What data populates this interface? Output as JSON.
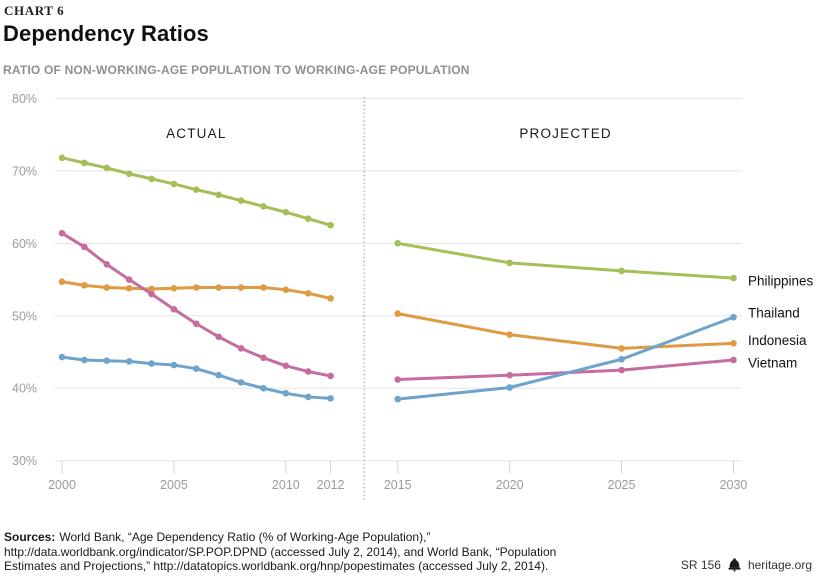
{
  "header": {
    "kicker": "CHART 6",
    "title": "Dependency Ratios",
    "subtitle": "RATIO OF NON-WORKING-AGE POPULATION TO WORKING-AGE POPULATION"
  },
  "chart_data": {
    "type": "line",
    "title": "Dependency Ratios",
    "subtitle": "RATIO OF NON-WORKING-AGE POPULATION TO WORKING-AGE POPULATION",
    "ylim": [
      30,
      80
    ],
    "grid": true,
    "legend_position": "right-of-lines",
    "y_ticks": [
      {
        "value": 80,
        "label": "80%"
      },
      {
        "value": 70,
        "label": "70%"
      },
      {
        "value": 60,
        "label": "60%"
      },
      {
        "value": 50,
        "label": "50%"
      },
      {
        "value": 40,
        "label": "40%"
      },
      {
        "value": 30,
        "label": "30%"
      }
    ],
    "x_ticks": [
      {
        "year": 2000,
        "label": "2000"
      },
      {
        "year": 2005,
        "label": "2005"
      },
      {
        "year": 2010,
        "label": "2010"
      },
      {
        "year": 2012,
        "label": "2012"
      },
      {
        "year": 2015,
        "label": "2015"
      },
      {
        "year": 2020,
        "label": "2020"
      },
      {
        "year": 2025,
        "label": "2025"
      },
      {
        "year": 2030,
        "label": "2030"
      }
    ],
    "sections": [
      {
        "label": "ACTUAL",
        "start_year": 2000,
        "end_year": 2012
      },
      {
        "label": "PROJECTED",
        "start_year": 2015,
        "end_year": 2030
      }
    ],
    "divider_year": 2013.5,
    "actual_years": [
      2000,
      2001,
      2002,
      2003,
      2004,
      2005,
      2006,
      2007,
      2008,
      2009,
      2010,
      2011,
      2012
    ],
    "projected_years": [
      2015,
      2020,
      2025,
      2030
    ],
    "series": [
      {
        "name": "Philippines",
        "color": "#a4bf57",
        "actual": [
          71.8,
          71.1,
          70.4,
          69.6,
          68.9,
          68.2,
          67.4,
          66.7,
          65.9,
          65.1,
          64.3,
          63.4,
          62.5
        ],
        "projected": [
          60.0,
          57.3,
          56.2,
          55.2
        ]
      },
      {
        "name": "Indonesia",
        "color": "#e09a44",
        "actual": [
          54.7,
          54.2,
          53.9,
          53.8,
          53.7,
          53.8,
          53.9,
          53.9,
          53.9,
          53.9,
          53.6,
          53.1,
          52.4
        ],
        "projected": [
          50.3,
          47.4,
          45.5,
          46.2
        ]
      },
      {
        "name": "Vietnam",
        "color": "#c56d9e",
        "actual": [
          61.4,
          59.5,
          57.1,
          55.0,
          53.0,
          50.9,
          48.9,
          47.1,
          45.5,
          44.2,
          43.1,
          42.3,
          41.7
        ],
        "projected": [
          41.2,
          41.8,
          42.5,
          43.9
        ]
      },
      {
        "name": "Thailand",
        "color": "#6ea3cc",
        "actual": [
          44.3,
          43.9,
          43.8,
          43.7,
          43.4,
          43.2,
          42.7,
          41.8,
          40.8,
          40.0,
          39.3,
          38.8,
          38.6
        ],
        "projected": [
          38.5,
          40.1,
          44.0,
          49.8
        ]
      }
    ]
  },
  "footer": {
    "sources_label": "Sources:",
    "line1": "World Bank, “Age Dependency Ratio (% of Working-Age Population),”",
    "line2": "http://data.worldbank.org/indicator/SP.POP.DPND (accessed July 2, 2014), and World Bank, “Population",
    "line3": "Estimates and Projections,” http://datatopics.worldbank.org/hnp/popestimates (accessed July 2, 2014).",
    "report_id": "SR 156",
    "site": "heritage.org"
  }
}
